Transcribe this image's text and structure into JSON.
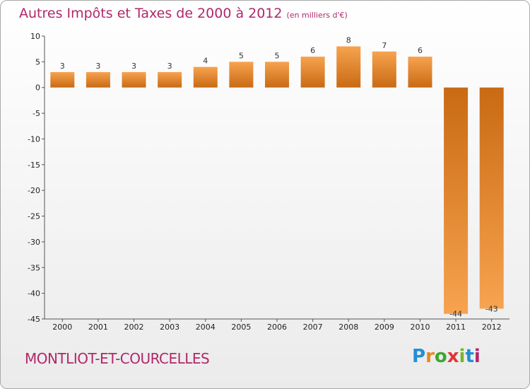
{
  "chart_data": {
    "type": "bar",
    "title": "Autres Impôts et Taxes de 2000 à 2012",
    "subtitle": "(en milliers d'€)",
    "categories": [
      "2000",
      "2001",
      "2002",
      "2003",
      "2004",
      "2005",
      "2006",
      "2007",
      "2008",
      "2009",
      "2010",
      "2011",
      "2012"
    ],
    "values": [
      3,
      3,
      3,
      3,
      4,
      5,
      5,
      6,
      8,
      7,
      6,
      -44,
      -43
    ],
    "ylim": [
      -45,
      10
    ],
    "yticks": [
      10,
      5,
      0,
      -5,
      -10,
      -15,
      -20,
      -25,
      -30,
      -35,
      -40,
      -45
    ],
    "xlabel": "",
    "ylabel": "",
    "grid": false,
    "bar_color_light": "#f7a34f",
    "bar_color_dark": "#c96a14"
  },
  "footer": {
    "town": "MONTLIOT-ET-COURCELLES",
    "logo": [
      "P",
      "r",
      "o",
      "x",
      "i",
      "t",
      "i"
    ],
    "logo_colors": [
      "#1f8fd6",
      "#e58a1f",
      "#3aa832",
      "#e0353a",
      "#7ab32e",
      "#1f8fd6",
      "#b0286a"
    ]
  }
}
